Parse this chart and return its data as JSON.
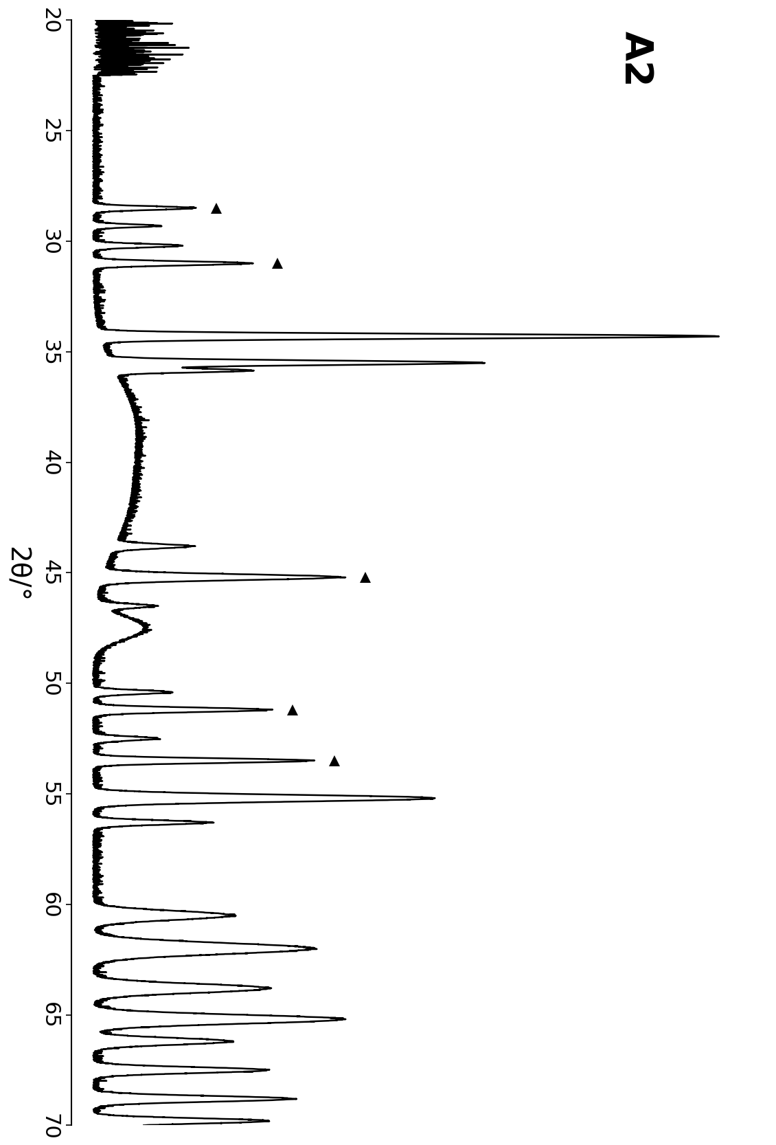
{
  "title": "A2",
  "xlabel": "2θ/°",
  "xmin": 20,
  "xmax": 70,
  "xticks": [
    20,
    25,
    30,
    35,
    40,
    45,
    50,
    55,
    60,
    65,
    70
  ],
  "background_color": "#ffffff",
  "line_color": "#000000",
  "marker_positions": [
    28.5,
    31.0,
    45.2,
    51.2,
    53.5
  ],
  "seed": 42
}
